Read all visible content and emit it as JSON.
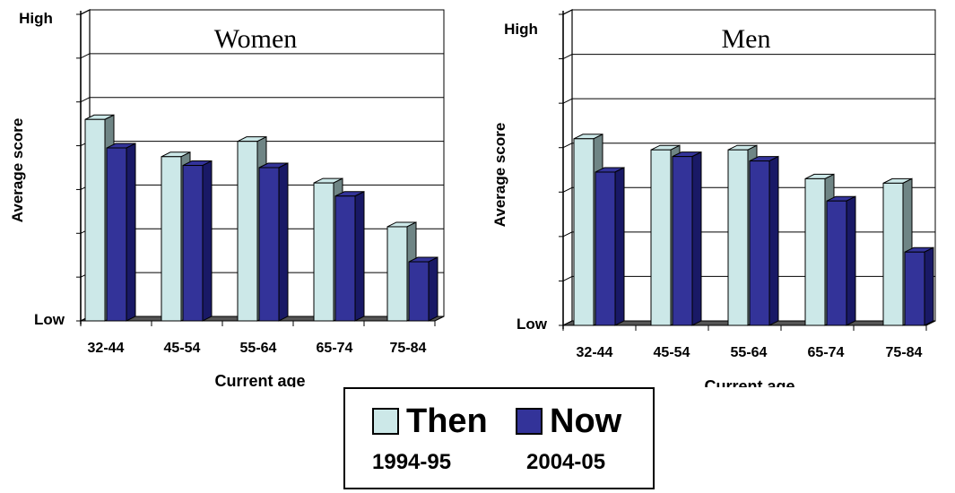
{
  "legend": {
    "then_label": "Then",
    "then_period": "1994-95",
    "now_label": "Now",
    "now_period": "2004-05"
  },
  "colors": {
    "then": "#cce8e8",
    "now": "#333399",
    "then_side": "#6f8585",
    "now_side": "#191966"
  },
  "chart_data": [
    {
      "type": "bar",
      "title": "Women",
      "xlabel": "Current age",
      "ylabel": "Average score",
      "y_top_label": "High",
      "y_bottom_label": "Low",
      "categories": [
        "32-44",
        "45-54",
        "55-64",
        "65-74",
        "75-84"
      ],
      "series": [
        {
          "name": "Then",
          "values": [
            4.6,
            3.75,
            4.1,
            3.15,
            2.15
          ]
        },
        {
          "name": "Now",
          "values": [
            3.95,
            3.55,
            3.5,
            2.85,
            1.35
          ]
        }
      ],
      "ylim": [
        0,
        7
      ],
      "grid": true,
      "legend": "bottom-center"
    },
    {
      "type": "bar",
      "title": "Men",
      "xlabel": "Current age",
      "ylabel": "Average score",
      "y_top_label": "High",
      "y_bottom_label": "Low",
      "categories": [
        "32-44",
        "45-54",
        "55-64",
        "65-74",
        "75-84"
      ],
      "series": [
        {
          "name": "Then",
          "values": [
            4.2,
            3.95,
            3.95,
            3.3,
            3.2
          ]
        },
        {
          "name": "Now",
          "values": [
            3.45,
            3.8,
            3.7,
            2.8,
            1.65
          ]
        }
      ],
      "ylim": [
        0,
        7
      ],
      "grid": true,
      "legend": "bottom-center"
    }
  ]
}
